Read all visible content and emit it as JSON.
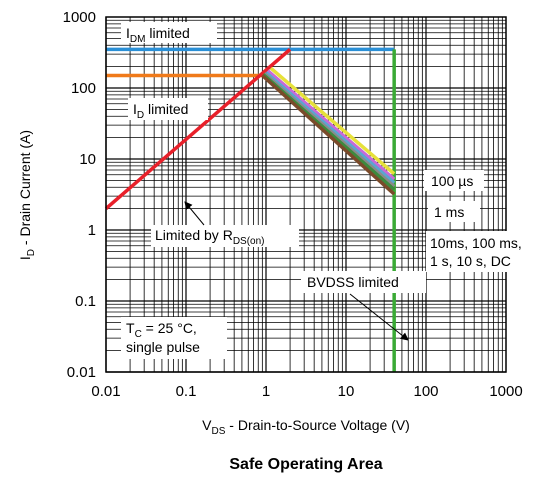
{
  "chart_data": {
    "type": "line",
    "title": "Safe Operating Area",
    "xlabel": {
      "main": "V",
      "sub": "DS",
      "rest": " - Drain-to-Source Voltage (V)"
    },
    "ylabel": {
      "main": "I",
      "sub": "D",
      "rest": " - Drain Current (A)"
    },
    "x_scale": "log",
    "y_scale": "log",
    "xlim": [
      0.01,
      1000
    ],
    "ylim": [
      0.01,
      1000
    ],
    "grid": true,
    "x_ticks": [
      0.01,
      0.1,
      1,
      10,
      100,
      1000
    ],
    "x_tick_labels": [
      "0.01",
      "0.1",
      "1",
      "10",
      "100",
      "1000"
    ],
    "y_ticks": [
      0.01,
      0.1,
      1,
      10,
      100,
      1000
    ],
    "y_tick_labels": [
      "0.01",
      "0.1",
      "1",
      "10",
      "100",
      "1000"
    ],
    "series": [
      {
        "name": "I_DM limited",
        "color": "#2a8fd6",
        "points": [
          [
            0.01,
            350
          ],
          [
            40,
            350
          ]
        ]
      },
      {
        "name": "I_D limited",
        "color": "#f07a1a",
        "points": [
          [
            0.01,
            150
          ],
          [
            0.9,
            150
          ]
        ]
      },
      {
        "name": "Limited by R_DS(on)",
        "color": "#e8202a",
        "points": [
          [
            0.01,
            2
          ],
          [
            2,
            350
          ]
        ]
      },
      {
        "name": "BVDSS limited",
        "color": "#3aaa35",
        "points": [
          [
            40,
            0.01
          ],
          [
            40,
            350
          ]
        ]
      },
      {
        "name": "100 µs",
        "color": "#e7e13a",
        "points": [
          [
            1.15,
            190
          ],
          [
            40,
            6.2
          ]
        ]
      },
      {
        "name": "1 ms",
        "color": "#c86ad8",
        "points": [
          [
            1.05,
            175
          ],
          [
            40,
            5.2
          ]
        ]
      },
      {
        "name": "10 ms",
        "color": "#5aa6d0",
        "points": [
          [
            1.0,
            165
          ],
          [
            40,
            4.6
          ]
        ]
      },
      {
        "name": "100 ms",
        "color": "#8a8a8a",
        "points": [
          [
            0.95,
            160
          ],
          [
            40,
            4.1
          ]
        ]
      },
      {
        "name": "1 s",
        "color": "#3d8a3d",
        "points": [
          [
            0.92,
            155
          ],
          [
            40,
            3.7
          ]
        ]
      },
      {
        "name": "DC",
        "color": "#7a4a2a",
        "points": [
          [
            0.9,
            150
          ],
          [
            40,
            3.2
          ]
        ]
      }
    ],
    "annotations": {
      "idm": {
        "main": "I",
        "sub": "DM",
        "rest": " limited"
      },
      "id": {
        "main": "I",
        "sub": "D",
        "rest": " limited"
      },
      "rds": {
        "main": "Limited by R",
        "sub": "DS(on)",
        "rest": ""
      },
      "bvdss": "BVDSS limited",
      "us100": "100 µs",
      "ms1": "1 ms",
      "dc_line1": "10ms, 100 ms,",
      "dc_line2": "1 s, 10 s, DC",
      "tc_main": "T",
      "tc_sub": "C",
      "tc_rest": " = 25 °C,",
      "single_pulse": "single pulse"
    }
  }
}
